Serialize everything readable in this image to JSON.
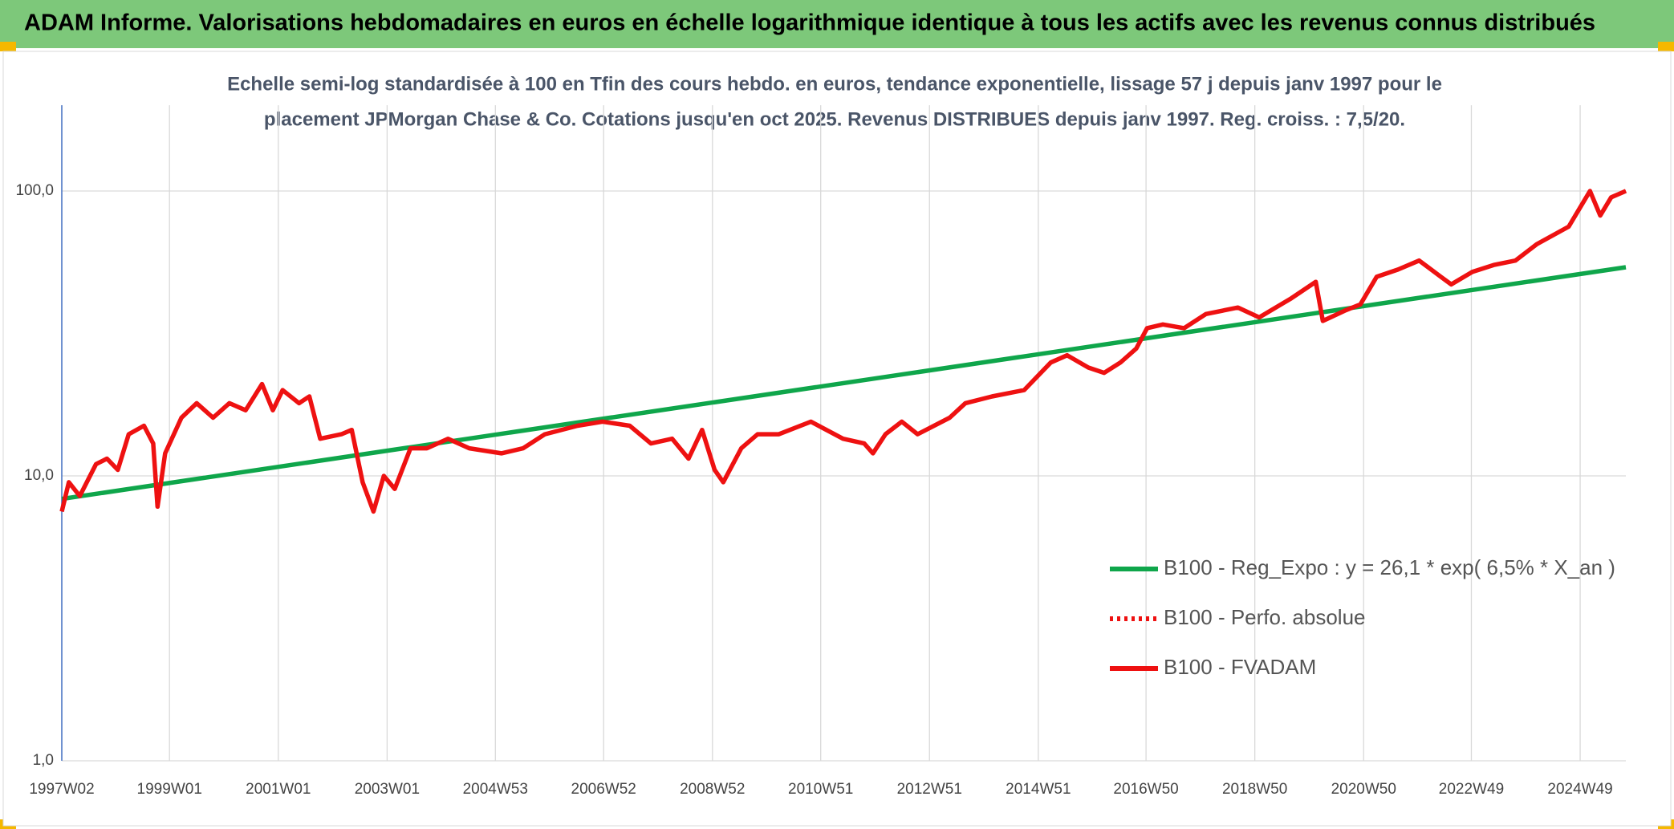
{
  "chart_data": {
    "type": "line",
    "header": "ADAM Informe. Valorisations hebdomadaires en euros en échelle logarithmique identique à tous les actifs avec les revenus connus distribués",
    "title": [
      "Echelle semi-log standardisée à 100 en Tfin des cours hebdo. en euros, tendance exponentielle, lissage 57 j depuis janv 1997 pour le",
      "placement JPMorgan Chase & Co. Cotations jusqu'en oct 2025. Revenus DISTRIBUES depuis janv 1997. Reg. croiss. : 7,5/20."
    ],
    "log_scale": true,
    "grid": true,
    "ylim": [
      1,
      200
    ],
    "yticks": [
      {
        "value": 1,
        "label": "1,0"
      },
      {
        "value": 10,
        "label": "10,0"
      },
      {
        "value": 100,
        "label": "100,0"
      }
    ],
    "xlim": [
      1997.02,
      2025.77
    ],
    "xticks": [
      {
        "value": 1997.02,
        "label": "1997W02"
      },
      {
        "value": 1999.0,
        "label": "1999W01"
      },
      {
        "value": 2001.0,
        "label": "2001W01"
      },
      {
        "value": 2003.0,
        "label": "2003W01"
      },
      {
        "value": 2004.99,
        "label": "2004W53"
      },
      {
        "value": 2006.98,
        "label": "2006W52"
      },
      {
        "value": 2008.98,
        "label": "2008W52"
      },
      {
        "value": 2010.97,
        "label": "2010W51"
      },
      {
        "value": 2012.97,
        "label": "2012W51"
      },
      {
        "value": 2014.97,
        "label": "2014W51"
      },
      {
        "value": 2016.95,
        "label": "2016W50"
      },
      {
        "value": 2018.95,
        "label": "2018W50"
      },
      {
        "value": 2020.95,
        "label": "2020W50"
      },
      {
        "value": 2022.93,
        "label": "2022W49"
      },
      {
        "value": 2024.93,
        "label": "2024W49"
      }
    ],
    "series": [
      {
        "name": "B100 - Reg_Expo : y = 26,1 * exp( 6,5% *  X_an )",
        "color": "#0fa64b",
        "style": "solid",
        "x": [
          1997.02,
          2025.77
        ],
        "values": [
          8.3,
          54
        ]
      },
      {
        "name": "B100 - Perfo. absolue",
        "color": "#ee1111",
        "style": "dotted",
        "x": [
          1997.02,
          1997.15,
          1997.35,
          1997.65,
          1997.85,
          1998.05,
          1998.25,
          1998.53,
          1998.7,
          1998.78,
          1998.92,
          1999.22,
          1999.5,
          1999.8,
          2000.1,
          2000.4,
          2000.7,
          2000.9,
          2001.08,
          2001.38,
          2001.57,
          2001.77,
          2002.16,
          2002.35,
          2002.55,
          2002.75,
          2002.94,
          2003.14,
          2003.43,
          2003.73,
          2004.12,
          2004.51,
          2005.1,
          2005.5,
          2005.9,
          2006.5,
          2006.96,
          2007.46,
          2007.85,
          2008.24,
          2008.54,
          2008.79,
          2009.02,
          2009.18,
          2009.51,
          2009.81,
          2010.2,
          2010.79,
          2011.38,
          2011.77,
          2011.93,
          2012.16,
          2012.46,
          2012.75,
          2013.34,
          2013.63,
          2014.12,
          2014.71,
          2015.2,
          2015.5,
          2015.89,
          2016.18,
          2016.48,
          2016.77,
          2016.97,
          2017.26,
          2017.65,
          2018.05,
          2018.64,
          2019.03,
          2019.62,
          2020.07,
          2020.2,
          2020.6,
          2020.89,
          2021.19,
          2021.58,
          2021.97,
          2022.37,
          2022.56,
          2022.95,
          2023.34,
          2023.74,
          2024.13,
          2024.72,
          2025.11,
          2025.3,
          2025.5,
          2025.77
        ],
        "values": [
          7.5,
          9.5,
          8.5,
          11,
          11.5,
          10.5,
          14,
          15,
          13,
          7.8,
          12,
          16,
          18,
          16,
          18,
          17,
          21,
          17,
          20,
          18,
          19,
          13.5,
          14,
          14.5,
          9.5,
          7.5,
          10,
          9,
          12.5,
          12.5,
          13.5,
          12.5,
          12,
          12.5,
          14,
          15,
          15.5,
          15,
          13,
          13.5,
          11.5,
          14.5,
          10.5,
          9.5,
          12.5,
          14,
          14,
          15.5,
          13.5,
          13,
          12,
          14,
          15.5,
          14,
          16,
          18,
          19,
          20,
          25,
          26.5,
          24,
          23,
          25,
          28,
          33,
          34,
          33,
          37,
          39,
          36,
          42,
          48,
          35,
          38,
          40,
          50,
          53,
          57,
          50,
          47,
          52,
          55,
          57,
          65,
          75,
          100,
          82,
          95,
          100
        ]
      },
      {
        "name": "B100 - FVADAM",
        "color": "#ee1111",
        "style": "solid",
        "x": [
          1997.02,
          1997.15,
          1997.35,
          1997.65,
          1997.85,
          1998.05,
          1998.25,
          1998.53,
          1998.7,
          1998.78,
          1998.92,
          1999.22,
          1999.5,
          1999.8,
          2000.1,
          2000.4,
          2000.7,
          2000.9,
          2001.08,
          2001.38,
          2001.57,
          2001.77,
          2002.16,
          2002.35,
          2002.55,
          2002.75,
          2002.94,
          2003.14,
          2003.43,
          2003.73,
          2004.12,
          2004.51,
          2005.1,
          2005.5,
          2005.9,
          2006.5,
          2006.96,
          2007.46,
          2007.85,
          2008.24,
          2008.54,
          2008.79,
          2009.02,
          2009.18,
          2009.51,
          2009.81,
          2010.2,
          2010.79,
          2011.38,
          2011.77,
          2011.93,
          2012.16,
          2012.46,
          2012.75,
          2013.34,
          2013.63,
          2014.12,
          2014.71,
          2015.2,
          2015.5,
          2015.89,
          2016.18,
          2016.48,
          2016.77,
          2016.97,
          2017.26,
          2017.65,
          2018.05,
          2018.64,
          2019.03,
          2019.62,
          2020.07,
          2020.2,
          2020.6,
          2020.89,
          2021.19,
          2021.58,
          2021.97,
          2022.37,
          2022.56,
          2022.95,
          2023.34,
          2023.74,
          2024.13,
          2024.72,
          2025.11,
          2025.3,
          2025.5,
          2025.77
        ],
        "values": [
          7.5,
          9.5,
          8.5,
          11,
          11.5,
          10.5,
          14,
          15,
          13,
          7.8,
          12,
          16,
          18,
          16,
          18,
          17,
          21,
          17,
          20,
          18,
          19,
          13.5,
          14,
          14.5,
          9.5,
          7.5,
          10,
          9,
          12.5,
          12.5,
          13.5,
          12.5,
          12,
          12.5,
          14,
          15,
          15.5,
          15,
          13,
          13.5,
          11.5,
          14.5,
          10.5,
          9.5,
          12.5,
          14,
          14,
          15.5,
          13.5,
          13,
          12,
          14,
          15.5,
          14,
          16,
          18,
          19,
          20,
          25,
          26.5,
          24,
          23,
          25,
          28,
          33,
          34,
          33,
          37,
          39,
          36,
          42,
          48,
          35,
          38,
          40,
          50,
          53,
          57,
          50,
          47,
          52,
          55,
          57,
          65,
          75,
          100,
          82,
          95,
          100
        ]
      }
    ]
  }
}
